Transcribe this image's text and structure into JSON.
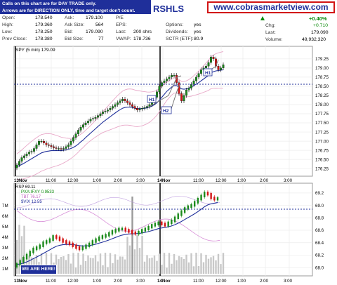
{
  "header": {
    "notice_line1": "Calls on this chart are for DAY TRADE only.",
    "notice_line2": "Arrows are for DIRECTION ONLY, time and target don't count.",
    "ticker": "RSHLS",
    "website": "www.cobrasmarketview.com",
    "quote": {
      "open_label": "Open:",
      "open": "178.540",
      "high_label": "High:",
      "high": "179.360",
      "low_label": "Low:",
      "low": "178.250",
      "prev_close_label": "Prev Close:",
      "prev_close": "178.380",
      "ask_label": "Ask:",
      "ask": "179.100",
      "ask_size_label": "Ask Size:",
      "ask_size": "564",
      "bid_label": "Bid:",
      "bid": "179.090",
      "bid_size_label": "Bid Size:",
      "bid_size": "77",
      "pe_label": "P/E",
      "pe": "",
      "eps_label": "EPS:",
      "eps": "",
      "last_shrs_label": "Last:",
      "last_shrs": "200 shrs",
      "vwap_label": "VWAP:",
      "vwap": "178.736",
      "options_label": "Options:",
      "options": "yes",
      "dividends_label": "Dividends:",
      "dividends": "yes",
      "sctr_label": "SCTR (ETF):",
      "sctr": "80.9",
      "pct_change": "+0.40%",
      "chg_label": "Chg:",
      "chg": "+0.710",
      "last_label": "Last:",
      "last": "179.090",
      "volume_label": "Volume:",
      "volume": "49,932,320"
    }
  },
  "main_panel": {
    "legend": "SPY (5 min) 179.09",
    "annotations": [
      "H1",
      "H2",
      "H1"
    ],
    "dashed_level": 178.5
  },
  "lower_panel": {
    "legend_rsp": "RSP 69.11",
    "legend_ratio": "PXA:IFXY 0.9533",
    "legend_tbt": "TBT 76.17",
    "legend_vix": "$VIX 12.55",
    "dashed_level": 68.9,
    "we_are_here": "WE ARE HERE!"
  },
  "colors": {
    "up_candle": "#1b8a1b",
    "down_candle": "#d21414",
    "ma": "#1f2f9a",
    "bollinger": "#e8a8c8",
    "accent_blue": "#1f2f9a",
    "red_border": "#d21414"
  },
  "chart_data": [
    {
      "type": "line",
      "name": "SPY (5 min)",
      "x_labels": [
        "13Nov",
        "11:00",
        "12:00",
        "1:00",
        "2:00",
        "3:00",
        "14Nov",
        "11:00",
        "12:00",
        "1:00",
        "2:00",
        "3:00"
      ],
      "yticks": [
        176.25,
        176.5,
        176.75,
        177.0,
        177.25,
        177.5,
        177.75,
        178.0,
        178.25,
        178.5,
        178.75,
        179.0,
        179.25
      ],
      "ylim": [
        176.1,
        179.4
      ],
      "close": [
        176.35,
        176.45,
        176.55,
        176.6,
        176.65,
        176.7,
        176.72,
        176.8,
        176.9,
        177.0,
        177.0,
        176.95,
        176.9,
        176.88,
        176.85,
        176.82,
        176.8,
        176.8,
        176.78,
        176.8,
        176.85,
        176.9,
        177.0,
        177.1,
        177.2,
        177.3,
        177.38,
        177.45,
        177.5,
        177.55,
        177.6,
        177.62,
        177.65,
        177.7,
        177.75,
        177.8,
        177.82,
        177.85,
        177.9,
        177.95,
        178.0,
        178.05,
        178.1,
        178.15,
        178.1,
        178.05,
        178.0,
        177.95,
        177.9,
        177.85,
        177.88,
        177.9,
        177.92,
        177.95,
        178.0,
        178.05,
        178.2,
        178.35,
        178.5,
        178.6,
        178.65,
        178.7,
        178.75,
        178.8,
        178.8,
        178.6,
        178.3,
        178.1,
        178.25,
        178.4,
        178.45,
        178.55,
        178.65,
        178.75,
        178.85,
        178.95,
        179.0,
        179.05,
        179.15,
        179.3,
        179.25,
        179.05,
        178.95,
        179.0,
        179.09
      ],
      "ma": [
        176.3,
        176.33,
        176.36,
        176.4,
        176.44,
        176.48,
        176.52,
        176.56,
        176.6,
        176.64,
        176.68,
        176.7,
        176.72,
        176.73,
        176.74,
        176.74,
        176.74,
        176.74,
        176.74,
        176.75,
        176.76,
        176.78,
        176.8,
        176.83,
        176.87,
        176.92,
        176.98,
        177.03,
        177.1,
        177.16,
        177.22,
        177.28,
        177.34,
        177.4,
        177.46,
        177.52,
        177.57,
        177.62,
        177.67,
        177.72,
        177.77,
        177.82,
        177.86,
        177.9,
        177.92,
        177.93,
        177.93,
        177.92,
        177.9,
        177.89,
        177.89,
        177.89,
        177.9,
        177.91,
        177.93,
        177.96,
        178.0,
        178.05,
        178.12,
        178.2,
        178.28,
        178.36,
        178.42,
        178.48,
        178.52,
        178.52,
        178.48,
        178.43,
        178.42,
        178.43,
        178.45,
        178.48,
        178.52,
        178.56,
        178.6,
        178.65,
        178.7,
        178.75,
        178.8,
        178.87,
        178.9,
        178.92,
        178.93,
        178.94,
        178.95
      ]
    },
    {
      "type": "line",
      "name": "RSP",
      "x_labels": [
        "13Nov",
        "11:00",
        "12:00",
        "1:00",
        "2:00",
        "3:00",
        "14Nov",
        "11:00",
        "12:00",
        "1:00",
        "2:00",
        "3:00"
      ],
      "yticks": [
        68.0,
        68.2,
        68.4,
        68.6,
        68.8,
        69.0,
        69.2
      ],
      "ylim": [
        67.9,
        69.3
      ],
      "volume_ticks": [
        "1M",
        "2M",
        "3M",
        "4M",
        "5M",
        "6M",
        "7M"
      ],
      "close": [
        68.05,
        68.1,
        68.15,
        68.2,
        68.25,
        68.3,
        68.32,
        68.35,
        68.4,
        68.42,
        68.45,
        68.5,
        68.48,
        68.45,
        68.42,
        68.4,
        68.38,
        68.35,
        68.32,
        68.3,
        68.32,
        68.35,
        68.38,
        68.42,
        68.45,
        68.48,
        68.5,
        68.52,
        68.55,
        68.58,
        68.6,
        68.62,
        68.62,
        68.6,
        68.58,
        68.56,
        68.55,
        68.57,
        68.6,
        68.62,
        68.65,
        68.68,
        68.7,
        68.72,
        68.7,
        68.68,
        68.72,
        68.75,
        68.8,
        68.85,
        68.9,
        68.95,
        68.98,
        69.0,
        69.05,
        69.1,
        69.15,
        69.2,
        69.18,
        69.12,
        69.1,
        69.11
      ]
    }
  ]
}
